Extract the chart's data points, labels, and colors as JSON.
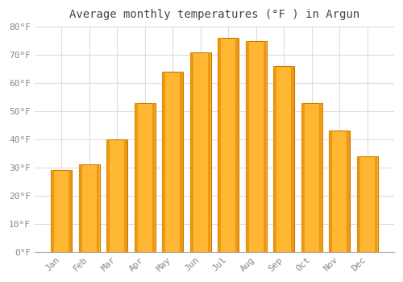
{
  "title": "Average monthly temperatures (°F ) in Argun",
  "months": [
    "Jan",
    "Feb",
    "Mar",
    "Apr",
    "May",
    "Jun",
    "Jul",
    "Aug",
    "Sep",
    "Oct",
    "Nov",
    "Dec"
  ],
  "values": [
    29,
    31,
    40,
    53,
    64,
    71,
    76,
    75,
    66,
    53,
    43,
    34
  ],
  "bar_color_center": "#FFB733",
  "bar_color_edge": "#E8940A",
  "bar_outline_color": "#C87800",
  "background_color": "#FFFFFF",
  "plot_bg_color": "#FFFFFF",
  "grid_color": "#DDDDDD",
  "ylim": [
    0,
    80
  ],
  "yticks": [
    0,
    10,
    20,
    30,
    40,
    50,
    60,
    70,
    80
  ],
  "title_fontsize": 10,
  "tick_fontsize": 8,
  "tick_color": "#888888",
  "figsize": [
    5.0,
    3.5
  ],
  "dpi": 100
}
